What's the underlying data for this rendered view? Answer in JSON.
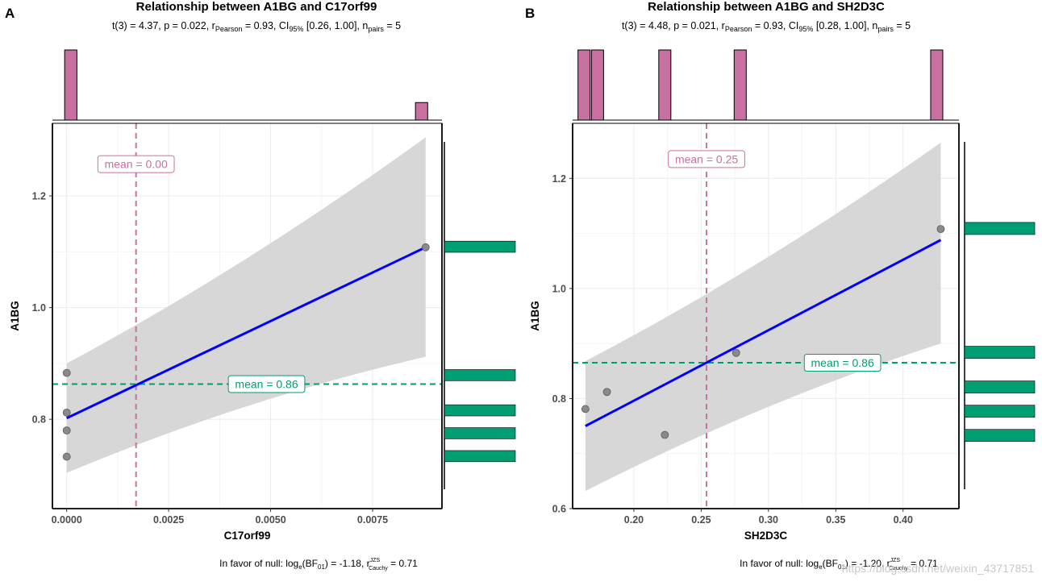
{
  "watermark": "https://blog.csdn.net/weixin_43717851",
  "colors": {
    "x_marginal": "#c870a0",
    "y_marginal": "#009e73",
    "fit_line": "#0000ff",
    "ci_band": "#d3d3d3",
    "points": "#8a8a8a",
    "grid": "#ebebeb"
  },
  "chart_data": [
    {
      "type": "scatter",
      "panel_label": "A",
      "title": "Relationship between A1BG and C17orf99",
      "subtitle": {
        "stat": "t(3) = 4.37, p  = 0.022, r",
        "r_sub": "Pearson",
        "r_val": " = 0.93, CI",
        "ci_sub": "95%",
        "ci_val": " [0.26, 1.00], n",
        "n_sub": "pairs",
        "n_val": " = 5"
      },
      "xlabel": "C17orf99",
      "ylabel": "A1BG",
      "xlim": [
        -0.00035,
        0.0092
      ],
      "ylim": [
        0.64,
        1.33
      ],
      "xticks": [
        0.0,
        0.0025,
        0.005,
        0.0075
      ],
      "xtick_labels": [
        "0.0000",
        "0.0025",
        "0.0050",
        "0.0075"
      ],
      "yticks": [
        0.8,
        1.0,
        1.2
      ],
      "ytick_labels": [
        "0.8",
        "1.0",
        "1.2"
      ],
      "points": [
        {
          "x": 0.0,
          "y": 0.883
        },
        {
          "x": 0.0,
          "y": 0.812
        },
        {
          "x": 0.0,
          "y": 0.78
        },
        {
          "x": 0.0,
          "y": 0.733
        },
        {
          "x": 0.0088,
          "y": 1.108
        }
      ],
      "fit": {
        "x0": 0.0,
        "y0": 0.802,
        "x1": 0.0088,
        "y1": 1.108
      },
      "ci_band": {
        "x": [
          0.0,
          0.0088
        ],
        "upper": [
          0.9,
          1.305
        ],
        "lower": [
          0.704,
          0.912
        ]
      },
      "x_mean": {
        "value": 0.0017,
        "label": "mean = 0.00",
        "label_y": 1.257
      },
      "y_mean": {
        "value": 0.863,
        "label": "mean = 0.86",
        "label_x": 0.0049
      },
      "x_hist": {
        "counts": [
          4,
          1
        ],
        "bin_edges": [
          [
            -5e-05,
            0.00025
          ],
          [
            0.00855,
            0.00885
          ]
        ]
      },
      "y_hist": {
        "bins": [
          [
            0.724,
            0.744,
            1
          ],
          [
            0.765,
            0.785,
            1
          ],
          [
            0.806,
            0.826,
            1
          ],
          [
            0.869,
            0.889,
            1
          ],
          [
            1.099,
            1.119,
            1
          ]
        ]
      },
      "caption": {
        "pre": "In favor of null: log",
        "e_sub": "e",
        "bf": "(BF",
        "bf_sub": "01",
        "mid": ") = -1.18, r",
        "r_sup": "JZS",
        "r_sub": "Cauchy",
        "val": " = 0.71"
      }
    },
    {
      "type": "scatter",
      "panel_label": "B",
      "title": "Relationship between A1BG and SH2D3C",
      "subtitle": {
        "stat": "t(3) = 4.48, p  = 0.021, r",
        "r_sub": "Pearson",
        "r_val": " = 0.93, CI",
        "ci_sub": "95%",
        "ci_val": " [0.28, 1.00], n",
        "n_sub": "pairs",
        "n_val": " = 5"
      },
      "xlabel": "SH2D3C",
      "ylabel": "A1BG",
      "xlim": [
        0.1545,
        0.4415
      ],
      "ylim": [
        0.6,
        1.3
      ],
      "xticks": [
        0.2,
        0.25,
        0.3,
        0.35,
        0.4
      ],
      "xtick_labels": [
        "0.20",
        "0.25",
        "0.30",
        "0.35",
        "0.40"
      ],
      "yticks": [
        0.6,
        0.8,
        1.0,
        1.2
      ],
      "ytick_labels": [
        "0.6",
        "0.8",
        "1.0",
        "1.2"
      ],
      "points": [
        {
          "x": 0.164,
          "y": 0.781
        },
        {
          "x": 0.18,
          "y": 0.812
        },
        {
          "x": 0.223,
          "y": 0.734
        },
        {
          "x": 0.276,
          "y": 0.883
        },
        {
          "x": 0.428,
          "y": 1.108
        }
      ],
      "fit": {
        "x0": 0.164,
        "y0": 0.75,
        "x1": 0.428,
        "y1": 1.088
      },
      "ci_band": {
        "x": [
          0.164,
          0.428
        ],
        "upper": [
          0.868,
          1.265
        ],
        "lower": [
          0.632,
          0.9
        ]
      },
      "x_mean": {
        "value": 0.254,
        "label": "mean = 0.25",
        "label_y": 1.235
      },
      "y_mean": {
        "value": 0.865,
        "label": "mean = 0.86",
        "label_x": 0.355
      },
      "x_hist": {
        "counts": [
          1,
          1,
          1,
          1,
          1
        ],
        "bin_edges": [
          [
            0.1585,
            0.1675
          ],
          [
            0.1685,
            0.1775
          ],
          [
            0.2185,
            0.2275
          ],
          [
            0.2745,
            0.2835
          ],
          [
            0.4205,
            0.4295
          ]
        ]
      },
      "y_hist": {
        "bins": [
          [
            0.722,
            0.744,
            1
          ],
          [
            0.766,
            0.788,
            1
          ],
          [
            0.81,
            0.832,
            1
          ],
          [
            0.873,
            0.895,
            1
          ],
          [
            1.098,
            1.12,
            1
          ]
        ]
      },
      "caption": {
        "pre": "In favor of null: log",
        "e_sub": "e",
        "bf": "(BF",
        "bf_sub": "01",
        "mid": ") = -1.20, r",
        "r_sup": "JZS",
        "r_sub": "Cauchy",
        "val": " = 0.71"
      }
    }
  ]
}
